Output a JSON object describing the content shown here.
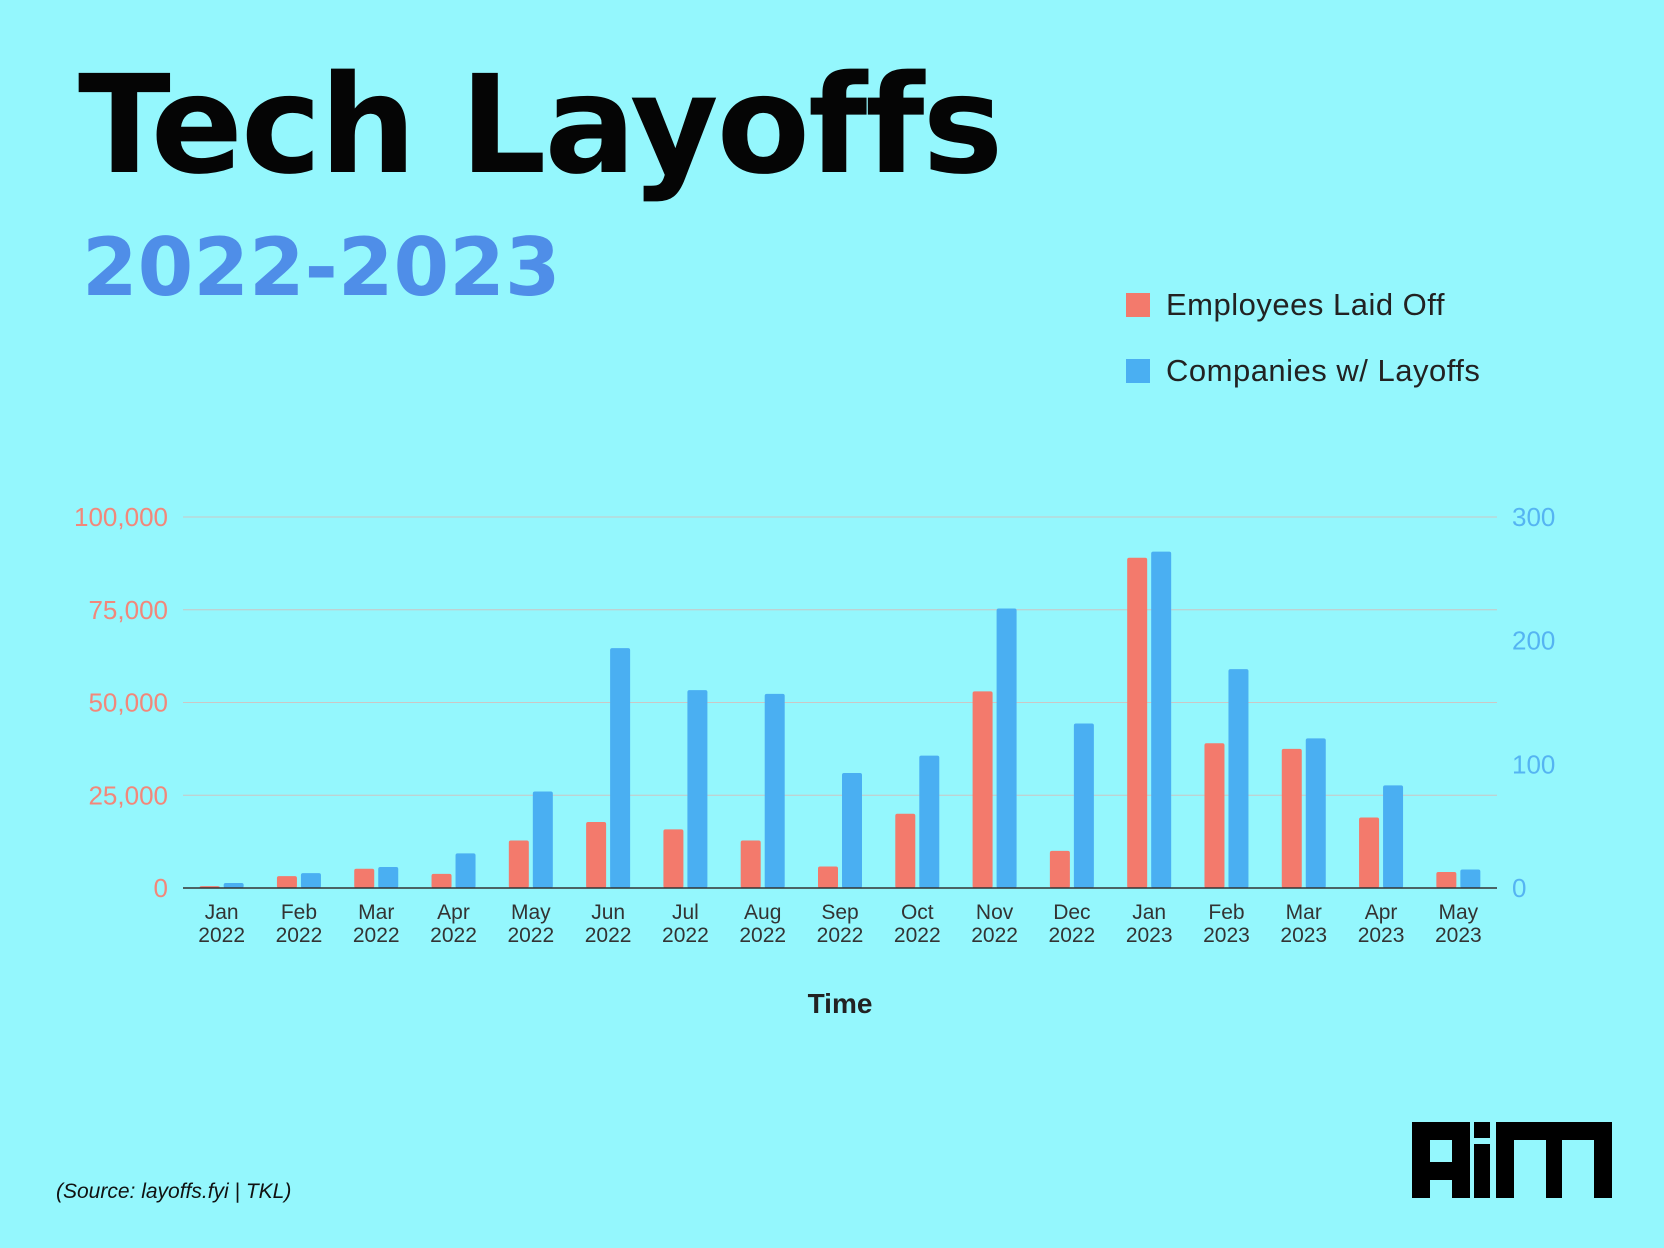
{
  "title": "Tech Layoffs",
  "subtitle": "2022-2023",
  "source": "(Source: layoffs.fyi | TKL)",
  "logo_text": "AIM",
  "colors": {
    "background": "#94f7fd",
    "employees": "#f37a6c",
    "companies": "#4aaff2",
    "subtitle": "#4f8ee8"
  },
  "chart_data": {
    "type": "bar",
    "categories": [
      "Jan 2022",
      "Feb 2022",
      "Mar 2022",
      "Apr 2022",
      "May 2022",
      "Jun 2022",
      "Jul 2022",
      "Aug 2022",
      "Sep 2022",
      "Oct 2022",
      "Nov 2022",
      "Dec 2022",
      "Jan 2023",
      "Feb 2023",
      "Mar 2023",
      "Apr 2023",
      "May 2023"
    ],
    "series": [
      {
        "name": "Employees Laid Off",
        "axis": "left",
        "values": [
          500,
          3200,
          5200,
          3800,
          12800,
          17800,
          15800,
          12800,
          5800,
          20000,
          53000,
          10000,
          89000,
          39000,
          37500,
          19000,
          4300
        ]
      },
      {
        "name": "Companies w/ Layoffs",
        "axis": "right",
        "values": [
          4,
          12,
          17,
          28,
          78,
          194,
          160,
          157,
          93,
          107,
          226,
          133,
          272,
          177,
          121,
          83,
          15
        ]
      }
    ],
    "xlabel": "Time",
    "ylim_left": [
      0,
      100000
    ],
    "ylim_right": [
      0,
      300
    ],
    "yticks_left": [
      "0",
      "25,000",
      "50,000",
      "75,000",
      "100,000"
    ],
    "yticks_left_values": [
      0,
      25000,
      50000,
      75000,
      100000
    ],
    "yticks_right": [
      "0",
      "100",
      "200",
      "300"
    ],
    "yticks_right_values": [
      0,
      100,
      200,
      300
    ],
    "legend_position": "top-right",
    "grid": true
  }
}
